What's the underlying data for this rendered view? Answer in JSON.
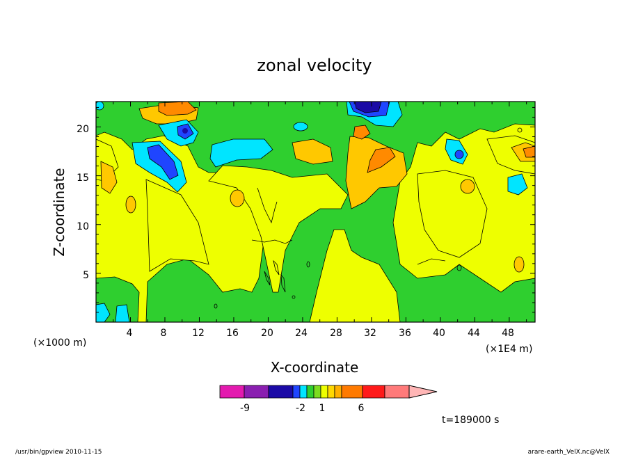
{
  "chart_data": {
    "type": "heatmap",
    "title": "zonal velocity",
    "xlabel": "X-coordinate",
    "ylabel": "Z-coordinate",
    "x_unit_left": "(×1000 m)",
    "x_unit_right": "(×1E4 m)",
    "x_ticks": [
      "4",
      "8",
      "12",
      "16",
      "20",
      "24",
      "28",
      "32",
      "36",
      "40",
      "44",
      "48"
    ],
    "y_ticks": [
      "5",
      "10",
      "15",
      "20"
    ],
    "xlim": [
      0,
      51
    ],
    "ylim": [
      0,
      22.6
    ],
    "colorbar": {
      "labels": [
        "-9",
        "-2",
        "1",
        "6"
      ],
      "colors": [
        "#e31aaf",
        "#8a1fb0",
        "#1b0aa6",
        "#1f45ff",
        "#00e5ff",
        "#2fcf2f",
        "#7ddc1f",
        "#eeff00",
        "#ffd800",
        "#ffb000",
        "#ff7a00",
        "#ff1a1a",
        "#ff7a7a",
        "#ffb6b6"
      ]
    },
    "time_label": "t=189000 s",
    "regions": [
      {
        "level": "yellow",
        "color": "#eeff00"
      },
      {
        "level": "green",
        "color": "#2fcf2f"
      },
      {
        "level": "light-orange",
        "color": "#ffc800"
      },
      {
        "level": "orange",
        "color": "#ff8a00"
      },
      {
        "level": "cyan",
        "color": "#00e5ff"
      },
      {
        "level": "blue",
        "color": "#1f45ff"
      },
      {
        "level": "dark-blue",
        "color": "#1b0aa6"
      }
    ]
  },
  "footer": {
    "left": "/usr/bin/gpview  2010-11-15",
    "right": "arare-earth_VelX.nc@VelX"
  }
}
